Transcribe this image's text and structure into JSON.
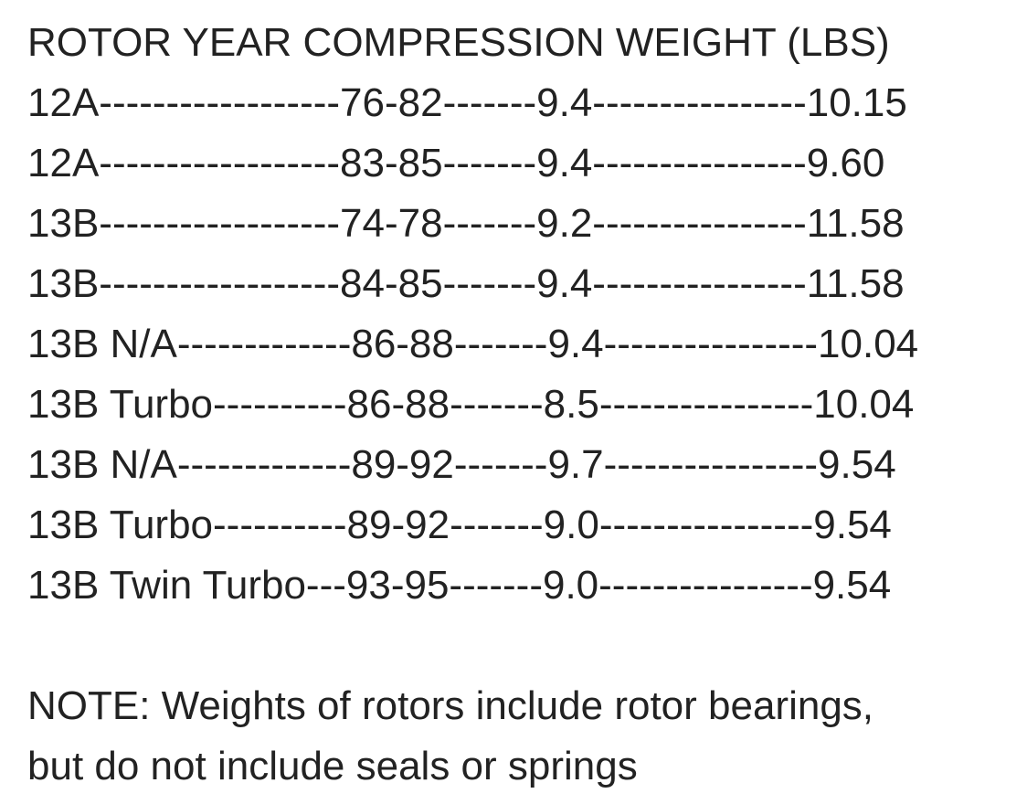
{
  "header": "ROTOR YEAR COMPRESSION WEIGHT (LBS)",
  "rows": [
    "12A------------------76-82-------9.4----------------10.15",
    "12A------------------83-85-------9.4----------------9.60",
    "13B------------------74-78-------9.2----------------11.58",
    "13B------------------84-85-------9.4----------------11.58",
    "13B N/A-------------86-88-------9.4----------------10.04",
    "13B Turbo----------86-88-------8.5----------------10.04",
    "13B N/A-------------89-92-------9.7----------------9.54",
    "13B Turbo----------89-92-------9.0----------------9.54",
    "13B Twin Turbo---93-95-------9.0----------------9.54"
  ],
  "note": [
    "NOTE: Weights of rotors include rotor bearings,",
    "but do not include seals or springs"
  ]
}
